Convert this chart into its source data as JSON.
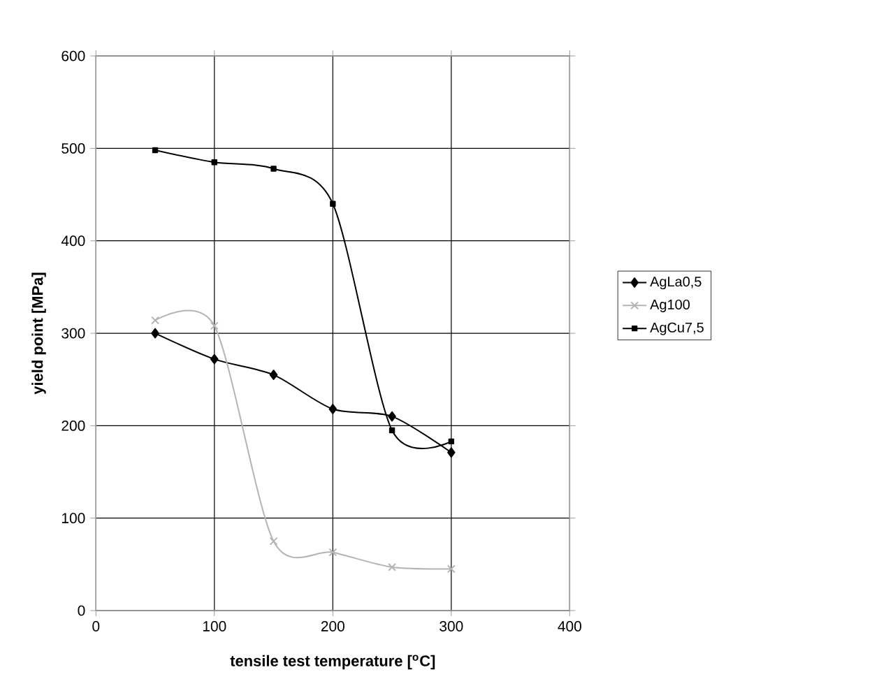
{
  "chart_data": {
    "type": "line",
    "xlabel": "tensile test temperature [$^{o}$C]",
    "ylabel": "yield point [MPa]",
    "x": [
      50,
      100,
      150,
      200,
      250,
      300
    ],
    "series": [
      {
        "name": "AgLa0,5",
        "color": "#000000",
        "marker": "diamond",
        "values": [
          300,
          272,
          255,
          218,
          210,
          171
        ]
      },
      {
        "name": "Ag100",
        "color": "#b4b4b4",
        "marker": "cross",
        "values": [
          314,
          308,
          75,
          63,
          47,
          45
        ]
      },
      {
        "name": "AgCu7,5",
        "color": "#000000",
        "marker": "square",
        "values": [
          498,
          485,
          478,
          440,
          195,
          183
        ]
      }
    ],
    "xlim": [
      0,
      400
    ],
    "xticks": [
      0,
      100,
      200,
      300,
      400
    ],
    "ylim": [
      0,
      600
    ],
    "yticks": [
      0,
      100,
      200,
      300,
      400,
      500,
      600
    ],
    "grid": true,
    "legend": "right",
    "line_style": "solid"
  }
}
